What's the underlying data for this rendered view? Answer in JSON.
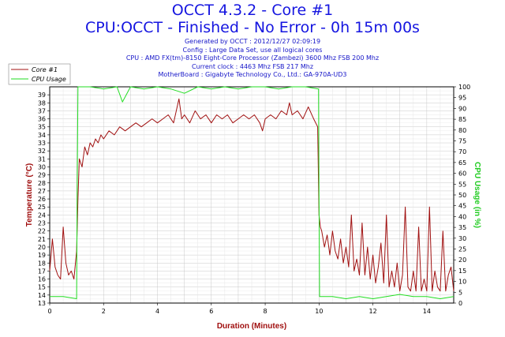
{
  "header": {
    "title": "OCCT 4.3.2 - Core #1",
    "subtitle": "CPU:OCCT - Finished - No Error - 0h 15m 00s",
    "info_lines": [
      "Generated by OCCT : 2012/12/27 02:09:19",
      "Config : Large Data Set, use all logical cores",
      "CPU : AMD FX(tm)-8150 Eight-Core Processor (Zambezi) 3600 Mhz FSB 200 Mhz",
      "Current clock : 4463 Mhz FSB 217 Mhz",
      "MotherBoard : Gigabyte Technology Co., Ltd.: GA-970A-UD3"
    ]
  },
  "colors": {
    "core": "#a01010",
    "cpu": "#22dd22",
    "title": "#1515e0",
    "axis_temp": "#a01010",
    "axis_cpu": "#22cc22",
    "axis_x": "#a01010"
  },
  "chart_data": {
    "type": "line",
    "xlabel": "Duration (Minutes)",
    "ylabel": "Temperature (°C)",
    "y2label": "CPU Usage (in %)",
    "xlim": [
      0,
      15
    ],
    "ylim": [
      13,
      40
    ],
    "y2lim": [
      0,
      100
    ],
    "x_ticks": [
      0,
      2,
      4,
      6,
      8,
      10,
      12,
      14
    ],
    "y_ticks": [
      13,
      14,
      15,
      16,
      17,
      18,
      19,
      20,
      21,
      22,
      23,
      24,
      25,
      26,
      27,
      28,
      29,
      30,
      31,
      32,
      33,
      34,
      35,
      36,
      37,
      38,
      39
    ],
    "y2_ticks": [
      0,
      5,
      10,
      15,
      20,
      25,
      30,
      35,
      40,
      45,
      50,
      55,
      60,
      65,
      70,
      75,
      80,
      85,
      90,
      95,
      100
    ],
    "legend_position": "top-left",
    "grid": true,
    "series": [
      {
        "name": "Core #1",
        "axis": "left",
        "x": [
          0.0,
          0.1,
          0.2,
          0.3,
          0.4,
          0.5,
          0.6,
          0.7,
          0.8,
          0.9,
          1.0,
          1.05,
          1.1,
          1.2,
          1.3,
          1.4,
          1.5,
          1.6,
          1.7,
          1.8,
          1.9,
          2.0,
          2.2,
          2.4,
          2.6,
          2.8,
          3.0,
          3.2,
          3.4,
          3.6,
          3.8,
          4.0,
          4.2,
          4.4,
          4.6,
          4.8,
          4.9,
          5.0,
          5.2,
          5.4,
          5.6,
          5.8,
          6.0,
          6.2,
          6.4,
          6.6,
          6.8,
          7.0,
          7.2,
          7.4,
          7.6,
          7.8,
          7.9,
          8.0,
          8.2,
          8.4,
          8.6,
          8.8,
          8.9,
          9.0,
          9.2,
          9.4,
          9.6,
          9.8,
          9.95,
          10.0,
          10.05,
          10.1,
          10.2,
          10.3,
          10.4,
          10.5,
          10.6,
          10.7,
          10.8,
          10.9,
          11.0,
          11.1,
          11.2,
          11.3,
          11.4,
          11.5,
          11.6,
          11.7,
          11.8,
          11.9,
          12.0,
          12.1,
          12.2,
          12.3,
          12.4,
          12.5,
          12.6,
          12.7,
          12.8,
          12.9,
          13.0,
          13.1,
          13.2,
          13.3,
          13.4,
          13.5,
          13.6,
          13.7,
          13.8,
          13.9,
          14.0,
          14.1,
          14.2,
          14.3,
          14.4,
          14.5,
          14.6,
          14.7,
          14.8,
          14.9,
          15.0
        ],
        "values": [
          17.0,
          21.0,
          17.5,
          16.5,
          16.0,
          22.5,
          18.0,
          16.5,
          17.0,
          16.0,
          19.5,
          26.0,
          31.0,
          30.0,
          32.5,
          31.5,
          33.0,
          32.5,
          33.5,
          33.0,
          34.0,
          33.5,
          34.5,
          34.0,
          35.0,
          34.5,
          35.0,
          35.5,
          35.0,
          35.5,
          36.0,
          35.5,
          36.0,
          36.5,
          35.5,
          38.5,
          36.0,
          36.5,
          35.5,
          37.0,
          36.0,
          36.5,
          35.5,
          36.5,
          36.0,
          36.5,
          35.5,
          36.0,
          36.5,
          36.0,
          36.5,
          35.5,
          34.5,
          36.0,
          36.5,
          36.0,
          37.0,
          36.5,
          38.0,
          36.5,
          37.0,
          36.0,
          37.5,
          36.0,
          35.0,
          24.0,
          22.5,
          22.0,
          20.0,
          21.5,
          19.0,
          22.0,
          19.5,
          18.5,
          21.0,
          18.0,
          20.0,
          17.5,
          24.0,
          17.0,
          18.5,
          16.5,
          23.0,
          16.5,
          20.0,
          16.0,
          19.0,
          15.5,
          17.5,
          20.5,
          15.5,
          24.0,
          15.0,
          17.0,
          15.0,
          18.0,
          14.5,
          16.5,
          25.0,
          15.0,
          14.5,
          17.0,
          14.5,
          22.5,
          14.5,
          16.0,
          14.5,
          25.0,
          14.5,
          17.0,
          15.0,
          14.5,
          22.0,
          14.5,
          16.5,
          17.5,
          14.5
        ]
      },
      {
        "name": "CPU Usage",
        "axis": "right",
        "x": [
          0.0,
          0.5,
          1.0,
          1.02,
          1.05,
          1.5,
          2.0,
          2.5,
          2.7,
          3.0,
          3.5,
          4.0,
          4.5,
          5.0,
          5.5,
          6.0,
          6.5,
          7.0,
          7.5,
          8.0,
          8.5,
          9.0,
          9.5,
          9.98,
          10.0,
          10.02,
          10.5,
          11.0,
          11.5,
          12.0,
          12.5,
          13.0,
          13.5,
          14.0,
          14.5,
          15.0
        ],
        "values": [
          3.0,
          3.0,
          2.0,
          50.0,
          100.0,
          100.0,
          99.0,
          100.0,
          93.0,
          100.0,
          99.0,
          100.0,
          99.0,
          97.0,
          100.0,
          99.0,
          100.0,
          99.0,
          100.0,
          100.0,
          99.0,
          100.0,
          100.0,
          99.0,
          50.0,
          3.0,
          3.0,
          2.0,
          3.0,
          2.0,
          3.0,
          4.0,
          3.0,
          3.0,
          2.0,
          3.0
        ]
      }
    ]
  }
}
